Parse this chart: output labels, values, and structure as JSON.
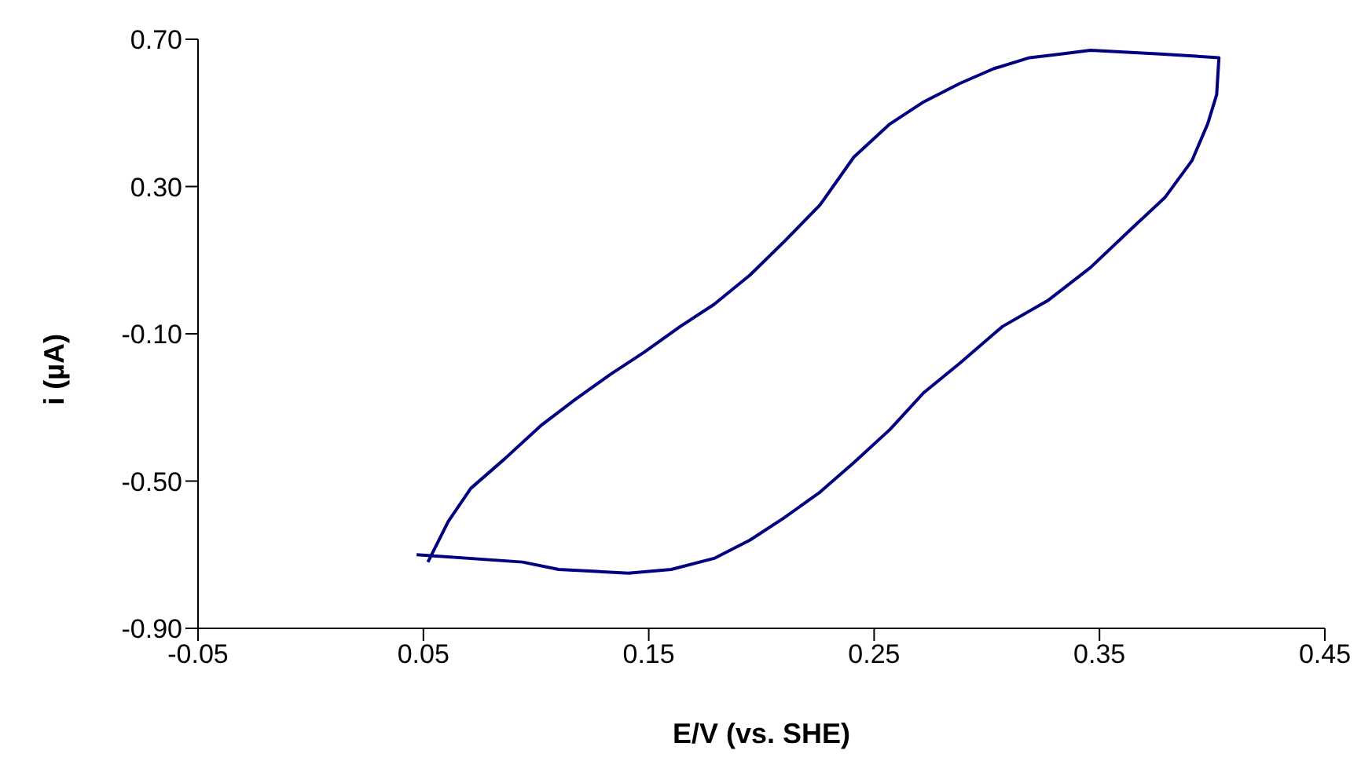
{
  "chart_data": {
    "type": "line",
    "xlabel": "E/V (vs. SHE)",
    "ylabel": "i (µA)",
    "x": [
      0.047,
      0.094,
      0.11,
      0.141,
      0.16,
      0.179,
      0.195,
      0.21,
      0.226,
      0.241,
      0.257,
      0.272,
      0.288,
      0.307,
      0.327,
      0.346,
      0.365,
      0.379,
      0.391,
      0.398,
      0.402,
      0.403,
      0.377,
      0.346,
      0.333,
      0.319,
      0.303,
      0.288,
      0.272,
      0.257,
      0.241,
      0.226,
      0.21,
      0.195,
      0.179,
      0.164,
      0.148,
      0.133,
      0.117,
      0.102,
      0.086,
      0.071,
      0.061,
      0.052
    ],
    "series": [
      {
        "color": "#000080",
        "values": [
          -0.7,
          -0.72,
          -0.74,
          -0.75,
          -0.74,
          -0.71,
          -0.66,
          -0.6,
          -0.53,
          -0.45,
          -0.36,
          -0.26,
          -0.18,
          -0.08,
          -0.01,
          0.08,
          0.19,
          0.27,
          0.37,
          0.47,
          0.55,
          0.65,
          0.66,
          0.67,
          0.66,
          0.65,
          0.62,
          0.58,
          0.53,
          0.47,
          0.38,
          0.25,
          0.15,
          0.06,
          -0.02,
          -0.08,
          -0.15,
          -0.21,
          -0.28,
          -0.35,
          -0.44,
          -0.52,
          -0.61,
          -0.72
        ]
      }
    ],
    "xlim": [
      -0.05,
      0.45
    ],
    "xticks": [
      {
        "value": -0.05,
        "label": "-0.05"
      },
      {
        "value": 0.05,
        "label": "0.05"
      },
      {
        "value": 0.15,
        "label": "0.15"
      },
      {
        "value": 0.25,
        "label": "0.25"
      },
      {
        "value": 0.35,
        "label": "0.35"
      },
      {
        "value": 0.45,
        "label": "0.45"
      }
    ],
    "ylim": [
      -0.9,
      0.7
    ],
    "yticks": [
      {
        "value": -0.9,
        "label": "-0.90"
      },
      {
        "value": -0.5,
        "label": "-0.50"
      },
      {
        "value": -0.1,
        "label": "-0.10"
      },
      {
        "value": 0.3,
        "label": "0.30"
      },
      {
        "value": 0.7,
        "label": "0.70"
      }
    ],
    "grid": false,
    "legend": false,
    "marker": "none",
    "line_style": "solid"
  }
}
